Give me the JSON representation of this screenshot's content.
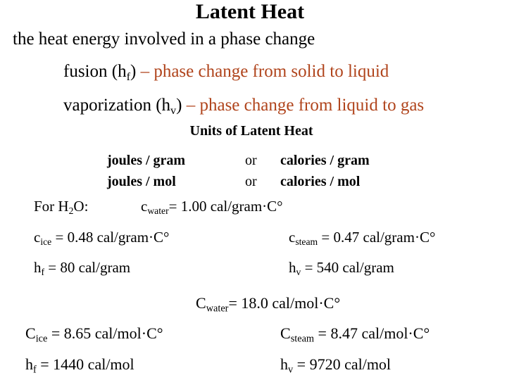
{
  "title": "Latent Heat",
  "definition": "the heat energy involved in a phase change",
  "fusion": {
    "term": [
      "fusion (h",
      "f",
      ")"
    ],
    "desc": "– phase change from solid to liquid"
  },
  "vaporization": {
    "term": [
      "vaporization (h",
      "v",
      ")"
    ],
    "desc": "– phase change from liquid to gas"
  },
  "units": {
    "heading": "Units of Latent Heat",
    "rows": [
      [
        "joules / gram",
        "or",
        "calories / gram"
      ],
      [
        "joules / mol",
        "or",
        "calories / mol"
      ]
    ]
  },
  "water_label": [
    "For H",
    "2",
    "O:"
  ],
  "per_gram": {
    "c_water": [
      "c",
      "water",
      "= 1.00 cal/gram·C°"
    ],
    "c_ice": [
      "c",
      "ice",
      " = 0.48 cal/gram·C°"
    ],
    "c_steam": [
      "c",
      "steam",
      " = 0.47 cal/gram·C°"
    ],
    "h_f": [
      "h",
      "f",
      " = 80 cal/gram"
    ],
    "h_v": [
      "h",
      "v",
      " = 540 cal/gram"
    ]
  },
  "per_mol": {
    "c_water": [
      "C",
      "water",
      "= 18.0 cal/mol·C°"
    ],
    "c_ice": [
      "C",
      "ice",
      " = 8.65 cal/mol·C°"
    ],
    "c_steam": [
      "C",
      "steam",
      " = 8.47 cal/mol·C°"
    ],
    "h_f": [
      "h",
      "f",
      " = 1440 cal/mol"
    ],
    "h_v": [
      "h",
      "v",
      " = 9720 cal/mol"
    ]
  }
}
